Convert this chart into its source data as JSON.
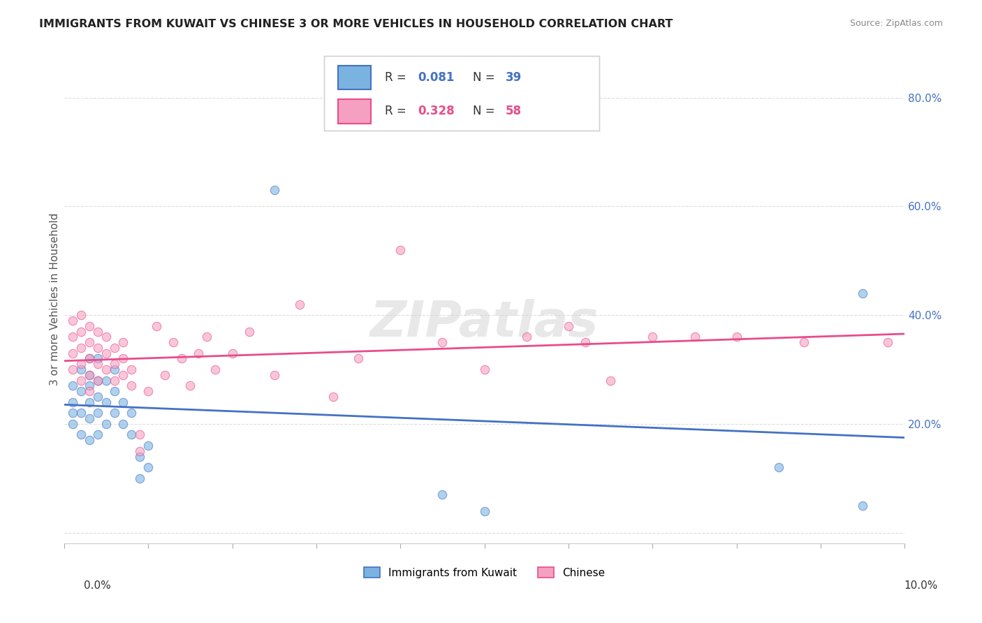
{
  "title": "IMMIGRANTS FROM KUWAIT VS CHINESE 3 OR MORE VEHICLES IN HOUSEHOLD CORRELATION CHART",
  "source": "Source: ZipAtlas.com",
  "ylabel": "3 or more Vehicles in Household",
  "yticks": [
    0.0,
    0.2,
    0.4,
    0.6,
    0.8
  ],
  "ytick_labels": [
    "",
    "20.0%",
    "40.0%",
    "60.0%",
    "80.0%"
  ],
  "xlim": [
    0.0,
    0.1
  ],
  "ylim": [
    -0.02,
    0.88
  ],
  "watermark": "ZIPatlas",
  "kuwait_scatter": [
    [
      0.001,
      0.2
    ],
    [
      0.001,
      0.22
    ],
    [
      0.001,
      0.24
    ],
    [
      0.001,
      0.27
    ],
    [
      0.002,
      0.18
    ],
    [
      0.002,
      0.22
    ],
    [
      0.002,
      0.26
    ],
    [
      0.002,
      0.3
    ],
    [
      0.003,
      0.17
    ],
    [
      0.003,
      0.21
    ],
    [
      0.003,
      0.24
    ],
    [
      0.003,
      0.27
    ],
    [
      0.003,
      0.29
    ],
    [
      0.003,
      0.32
    ],
    [
      0.004,
      0.18
    ],
    [
      0.004,
      0.22
    ],
    [
      0.004,
      0.25
    ],
    [
      0.004,
      0.28
    ],
    [
      0.004,
      0.32
    ],
    [
      0.005,
      0.2
    ],
    [
      0.005,
      0.24
    ],
    [
      0.005,
      0.28
    ],
    [
      0.006,
      0.22
    ],
    [
      0.006,
      0.26
    ],
    [
      0.006,
      0.3
    ],
    [
      0.007,
      0.2
    ],
    [
      0.007,
      0.24
    ],
    [
      0.008,
      0.18
    ],
    [
      0.008,
      0.22
    ],
    [
      0.009,
      0.1
    ],
    [
      0.009,
      0.14
    ],
    [
      0.01,
      0.12
    ],
    [
      0.01,
      0.16
    ],
    [
      0.025,
      0.63
    ],
    [
      0.045,
      0.07
    ],
    [
      0.05,
      0.04
    ],
    [
      0.085,
      0.12
    ],
    [
      0.095,
      0.44
    ],
    [
      0.095,
      0.05
    ]
  ],
  "chinese_scatter": [
    [
      0.001,
      0.3
    ],
    [
      0.001,
      0.33
    ],
    [
      0.001,
      0.36
    ],
    [
      0.001,
      0.39
    ],
    [
      0.002,
      0.28
    ],
    [
      0.002,
      0.31
    ],
    [
      0.002,
      0.34
    ],
    [
      0.002,
      0.37
    ],
    [
      0.002,
      0.4
    ],
    [
      0.003,
      0.26
    ],
    [
      0.003,
      0.29
    ],
    [
      0.003,
      0.32
    ],
    [
      0.003,
      0.35
    ],
    [
      0.003,
      0.38
    ],
    [
      0.004,
      0.28
    ],
    [
      0.004,
      0.31
    ],
    [
      0.004,
      0.34
    ],
    [
      0.004,
      0.37
    ],
    [
      0.005,
      0.3
    ],
    [
      0.005,
      0.33
    ],
    [
      0.005,
      0.36
    ],
    [
      0.006,
      0.28
    ],
    [
      0.006,
      0.31
    ],
    [
      0.006,
      0.34
    ],
    [
      0.007,
      0.29
    ],
    [
      0.007,
      0.32
    ],
    [
      0.007,
      0.35
    ],
    [
      0.008,
      0.27
    ],
    [
      0.008,
      0.3
    ],
    [
      0.009,
      0.15
    ],
    [
      0.009,
      0.18
    ],
    [
      0.01,
      0.26
    ],
    [
      0.011,
      0.38
    ],
    [
      0.012,
      0.29
    ],
    [
      0.013,
      0.35
    ],
    [
      0.014,
      0.32
    ],
    [
      0.015,
      0.27
    ],
    [
      0.016,
      0.33
    ],
    [
      0.017,
      0.36
    ],
    [
      0.018,
      0.3
    ],
    [
      0.02,
      0.33
    ],
    [
      0.022,
      0.37
    ],
    [
      0.025,
      0.29
    ],
    [
      0.028,
      0.42
    ],
    [
      0.032,
      0.25
    ],
    [
      0.035,
      0.32
    ],
    [
      0.04,
      0.52
    ],
    [
      0.045,
      0.35
    ],
    [
      0.05,
      0.3
    ],
    [
      0.055,
      0.36
    ],
    [
      0.06,
      0.38
    ],
    [
      0.062,
      0.35
    ],
    [
      0.065,
      0.28
    ],
    [
      0.07,
      0.36
    ],
    [
      0.075,
      0.36
    ],
    [
      0.08,
      0.36
    ],
    [
      0.088,
      0.35
    ],
    [
      0.098,
      0.35
    ]
  ],
  "kuwait_line_color": "#4472c4",
  "chinese_line_color": "#e84c8b",
  "scatter_blue": "#7ab3e0",
  "scatter_pink": "#f5a0c0",
  "dot_size": 80,
  "dot_alpha": 0.6,
  "r_kuwait": "0.081",
  "n_kuwait": "39",
  "r_chinese": "0.328",
  "n_chinese": "58",
  "legend_label_kuwait": "Immigrants from Kuwait",
  "legend_label_chinese": "Chinese"
}
